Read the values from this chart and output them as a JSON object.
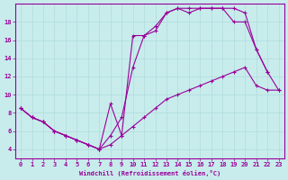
{
  "bg_color": "#c8ecec",
  "line_color": "#990099",
  "grid_color": "#b0dcdc",
  "xlabel": "Windchill (Refroidissement éolien,°C)",
  "xlim": [
    -0.5,
    23.5
  ],
  "ylim": [
    3.0,
    20.0
  ],
  "xticks": [
    0,
    1,
    2,
    3,
    4,
    5,
    6,
    7,
    8,
    9,
    10,
    11,
    12,
    13,
    14,
    15,
    16,
    17,
    18,
    19,
    20,
    21,
    22,
    23
  ],
  "yticks": [
    4,
    6,
    8,
    10,
    12,
    14,
    16,
    18
  ],
  "line1_x": [
    0,
    1,
    2,
    3,
    4,
    5,
    6,
    7,
    8,
    9,
    10,
    11,
    12,
    13,
    14,
    15,
    16,
    17,
    18,
    19,
    20,
    21,
    22,
    23
  ],
  "line1_y": [
    8.5,
    7.5,
    7.0,
    6.0,
    5.5,
    5.0,
    4.5,
    4.0,
    4.5,
    5.5,
    6.5,
    7.5,
    8.5,
    9.5,
    10.0,
    10.5,
    11.0,
    11.5,
    12.0,
    12.5,
    13.0,
    11.0,
    10.5,
    10.5
  ],
  "line2_x": [
    0,
    1,
    2,
    3,
    4,
    5,
    6,
    7,
    8,
    9,
    10,
    11,
    12,
    13,
    14,
    15,
    16,
    17,
    18,
    19,
    20,
    21,
    22
  ],
  "line2_y": [
    8.5,
    7.5,
    7.0,
    6.0,
    5.5,
    5.0,
    4.5,
    4.0,
    9.0,
    5.5,
    16.5,
    16.5,
    17.5,
    19.0,
    19.5,
    19.5,
    19.5,
    19.5,
    19.5,
    19.5,
    19.0,
    15.0,
    12.5
  ],
  "line3_x": [
    0,
    1,
    2,
    3,
    4,
    5,
    6,
    7,
    8,
    9,
    10,
    11,
    12,
    13,
    14,
    15,
    16,
    17,
    18,
    19,
    20,
    21,
    22,
    23
  ],
  "line3_y": [
    8.5,
    7.5,
    7.0,
    6.0,
    5.5,
    5.0,
    4.5,
    4.0,
    5.5,
    7.5,
    13.0,
    16.5,
    17.0,
    19.0,
    19.5,
    19.0,
    19.5,
    19.5,
    19.5,
    18.0,
    18.0,
    15.0,
    12.5,
    10.5
  ]
}
